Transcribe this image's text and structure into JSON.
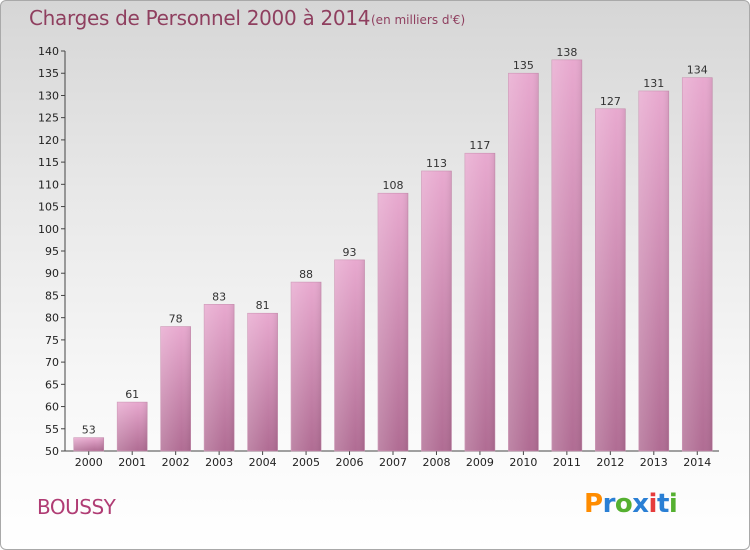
{
  "header": {
    "title": "Charges de Personnel 2000 à 2014",
    "subtitle": "(en milliers d'€)"
  },
  "footer": {
    "commune": "BOUSSY",
    "logo_text": "Proxiti",
    "logo_colors": [
      "#ff8c00",
      "#2a7fd4",
      "#55b030",
      "#2a7fd4",
      "#e63c3c",
      "#2a7fd4",
      "#55b030"
    ]
  },
  "colors": {
    "bar_top": "#e8a9cf",
    "bar_bottom": "#b06c93",
    "title": "#8f3f5f",
    "commune": "#b03c74"
  },
  "chart_data": {
    "type": "bar",
    "title": "Charges de Personnel 2000 à 2014",
    "subtitle": "(en milliers d'€)",
    "categories": [
      "2000",
      "2001",
      "2002",
      "2003",
      "2004",
      "2005",
      "2006",
      "2007",
      "2008",
      "2009",
      "2010",
      "2011",
      "2012",
      "2013",
      "2014"
    ],
    "values": [
      53,
      61,
      78,
      83,
      81,
      88,
      93,
      108,
      113,
      117,
      135,
      138,
      127,
      131,
      134
    ],
    "ylim": [
      50,
      140
    ],
    "yticks": [
      50,
      55,
      60,
      65,
      70,
      75,
      80,
      85,
      90,
      95,
      100,
      105,
      110,
      115,
      120,
      125,
      130,
      135,
      140
    ],
    "grid": false,
    "legend": "none"
  }
}
